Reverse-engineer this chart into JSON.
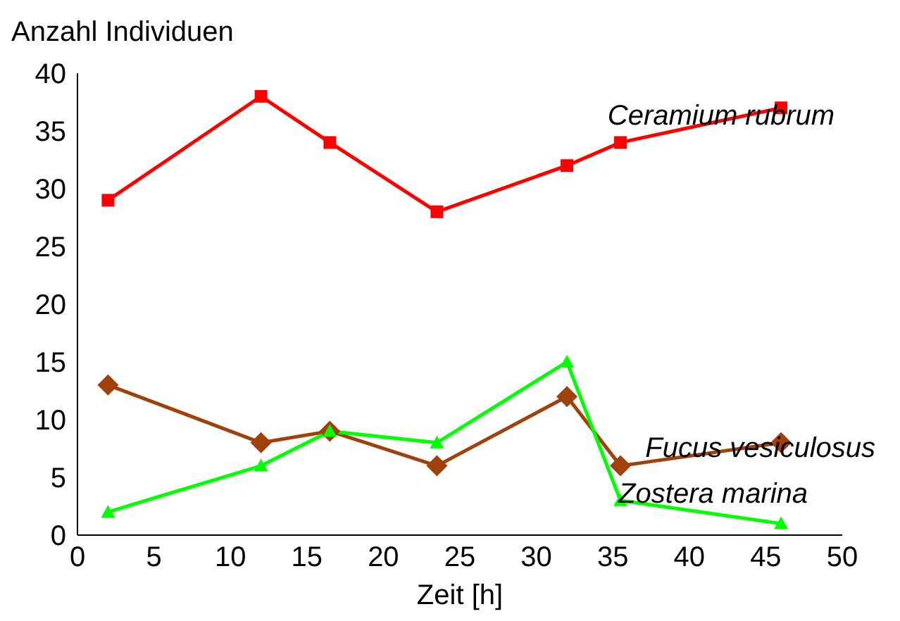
{
  "chart_data": {
    "type": "line",
    "xlabel": "Zeit [h]",
    "ylabel": "Anzahl Individuen",
    "xlim": [
      0,
      50
    ],
    "xticks": [
      0,
      5,
      10,
      15,
      20,
      25,
      30,
      35,
      40,
      45,
      50
    ],
    "ylim": [
      0,
      40
    ],
    "yticks": [
      0,
      5,
      10,
      15,
      20,
      25,
      30,
      35,
      40
    ],
    "grid": false,
    "legend": false,
    "x": [
      2,
      12,
      16.5,
      23.5,
      32,
      35.5,
      46
    ],
    "series": [
      {
        "name": "Ceramium rubrum",
        "color": "#ff0000",
        "marker": "square",
        "values": [
          29,
          38,
          34,
          28,
          32,
          34,
          37
        ]
      },
      {
        "name": "Fucus vesiculosus",
        "color": "#a0400a",
        "marker": "diamond",
        "values": [
          13,
          8,
          9,
          6,
          12,
          6,
          8
        ]
      },
      {
        "name": "Zostera marina",
        "color": "#00ff00",
        "marker": "triangle",
        "values": [
          2,
          6,
          9,
          8,
          15,
          3,
          1
        ]
      }
    ]
  }
}
